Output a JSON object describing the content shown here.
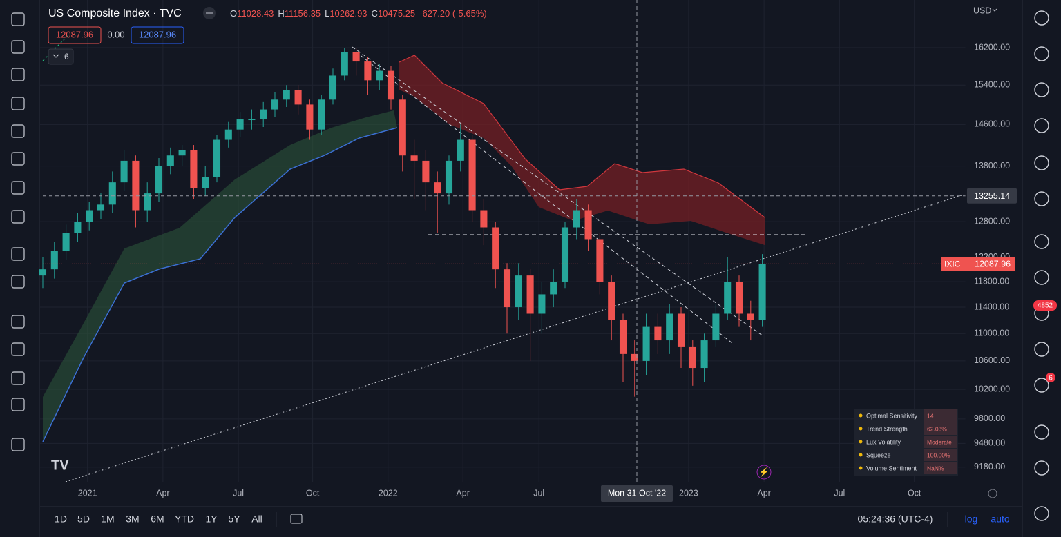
{
  "header": {
    "symbol": "US Composite Index · TVC",
    "ohlc": [
      {
        "key": "O",
        "value": "11028.43"
      },
      {
        "key": "H",
        "value": "11156.35"
      },
      {
        "key": "L",
        "value": "10262.93"
      },
      {
        "key": "C",
        "value": "10475.25"
      }
    ],
    "change": "-627.20 (-5.65%)",
    "bid": "12087.96",
    "spread": "0.00",
    "ask": "12087.96",
    "indicators_count": "6"
  },
  "currency": "USD",
  "chart_data": {
    "type": "candlestick",
    "log_scale": true,
    "up_color": "#26a69a",
    "down_color": "#ef5350",
    "x": [
      0,
      2,
      4,
      6,
      8,
      10,
      12,
      14,
      16,
      18,
      20,
      22,
      24,
      26,
      28,
      30,
      32,
      34,
      36,
      38,
      40,
      42,
      44,
      46,
      48,
      50,
      52,
      54,
      56,
      58,
      60,
      62,
      64,
      66,
      68,
      70,
      72,
      74,
      76,
      78,
      80,
      82,
      84,
      86,
      88,
      90,
      92,
      94,
      96,
      98,
      100,
      102,
      104,
      106,
      108,
      110,
      112,
      114,
      116,
      118,
      120,
      122,
      124
    ],
    "open": [
      11900,
      12000,
      12300,
      12600,
      12800,
      13000,
      13100,
      13500,
      13900,
      13000,
      13300,
      13800,
      14000,
      14100,
      13400,
      13600,
      14300,
      14500,
      14700,
      14700,
      14900,
      15100,
      15300,
      15000,
      14500,
      15100,
      15600,
      16100,
      15900,
      15500,
      15700,
      15100,
      14000,
      13900,
      13500,
      13300,
      13900,
      14300,
      13000,
      12700,
      12000,
      11400,
      11900,
      11300,
      11600,
      11800,
      12700,
      13000,
      12500,
      11800,
      11200,
      10700,
      10600,
      11100,
      10900,
      11300,
      10800,
      10500,
      10900,
      11300,
      11800,
      11300,
      11200
    ],
    "high": [
      12200,
      12450,
      12750,
      12950,
      13150,
      13300,
      13700,
      14100,
      14000,
      13500,
      13950,
      14150,
      14200,
      14200,
      13800,
      14400,
      14650,
      14850,
      14900,
      15050,
      15250,
      15400,
      15400,
      15100,
      15200,
      15750,
      16200,
      16200,
      16000,
      15850,
      15800,
      15200,
      14300,
      14100,
      13700,
      14000,
      14600,
      14400,
      13200,
      12800,
      12100,
      12100,
      12000,
      11800,
      12000,
      12800,
      13200,
      13100,
      12600,
      11900,
      11300,
      10900,
      11300,
      11300,
      11450,
      11400,
      10900,
      11000,
      11450,
      12200,
      11900,
      11500,
      12250
    ],
    "low": [
      11700,
      11850,
      12150,
      12450,
      12650,
      12850,
      12950,
      13350,
      12700,
      12800,
      13150,
      13650,
      13800,
      13200,
      13250,
      13500,
      14150,
      14350,
      14500,
      14550,
      14750,
      14950,
      14800,
      14300,
      14400,
      15000,
      15500,
      15600,
      15200,
      15300,
      14900,
      13700,
      13200,
      13000,
      12600,
      13100,
      13700,
      12800,
      12400,
      11700,
      11000,
      11200,
      10600,
      11000,
      11400,
      11700,
      12500,
      12300,
      11600,
      10900,
      10300,
      10100,
      10400,
      10700,
      10700,
      10500,
      10250,
      10300,
      10800,
      11200,
      11100,
      10900,
      11100
    ],
    "close": [
      12000,
      12300,
      12600,
      12800,
      13000,
      13100,
      13500,
      13900,
      13000,
      13300,
      13800,
      14000,
      14100,
      13400,
      13600,
      14300,
      14500,
      14700,
      14700,
      14900,
      15100,
      15300,
      15000,
      14500,
      15100,
      15600,
      16100,
      15900,
      15500,
      15700,
      15100,
      14000,
      13900,
      13500,
      13300,
      13900,
      14300,
      13000,
      12700,
      12000,
      11400,
      11900,
      11300,
      11600,
      11800,
      12700,
      13000,
      12500,
      11800,
      11200,
      10700,
      10600,
      11100,
      10900,
      11300,
      10800,
      10500,
      10900,
      11300,
      11800,
      11300,
      11200,
      12088
    ],
    "xlim": [
      0,
      159
    ],
    "ylim": [
      9000,
      17280
    ],
    "xticks": [
      {
        "value": 7.7,
        "label": "2021"
      },
      {
        "value": 20.7,
        "label": "Apr"
      },
      {
        "value": 33.7,
        "label": "Jul"
      },
      {
        "value": 46.5,
        "label": "Oct"
      },
      {
        "value": 59.5,
        "label": "2022"
      },
      {
        "value": 72.4,
        "label": "Apr"
      },
      {
        "value": 85.5,
        "label": "Jul"
      },
      {
        "value": 111.3,
        "label": "2023"
      },
      {
        "value": 124.3,
        "label": "Apr"
      },
      {
        "value": 137.3,
        "label": "Jul"
      },
      {
        "value": 150.2,
        "label": "Oct"
      }
    ],
    "yticks": [
      {
        "value": 16200,
        "label": "16200.00"
      },
      {
        "value": 15400,
        "label": "15400.00"
      },
      {
        "value": 14600,
        "label": "14600.00"
      },
      {
        "value": 13800,
        "label": "13800.00"
      },
      {
        "value": 12800,
        "label": "12800.00"
      },
      {
        "value": 12200,
        "label": "12200.00"
      },
      {
        "value": 11800,
        "label": "11800.00"
      },
      {
        "value": 11400,
        "label": "11400.00"
      },
      {
        "value": 11000,
        "label": "11000.00"
      },
      {
        "value": 10600,
        "label": "10600.00"
      },
      {
        "value": 10200,
        "label": "10200.00"
      },
      {
        "value": 9800,
        "label": "9800.00"
      },
      {
        "value": 9480,
        "label": "9480.00"
      },
      {
        "value": 9180,
        "label": "9180.00"
      }
    ],
    "price_line": {
      "symbol": "IXIC",
      "value": 12087.96
    },
    "crosshair": {
      "value": 13255.14,
      "date_label": "Mon 31 Oct '22"
    }
  },
  "timeframes": [
    "1D",
    "5D",
    "1M",
    "3M",
    "6M",
    "YTD",
    "1Y",
    "5Y",
    "All"
  ],
  "clock": "05:24:36 (UTC-4)",
  "scale_buttons": [
    "log",
    "auto"
  ],
  "info_table": {
    "rows": [
      [
        "Optimal Sensitivity",
        "14"
      ],
      [
        "Trend Strength",
        "62.03%"
      ],
      [
        "Lux Volatility",
        "Moderate"
      ],
      [
        "Squeeze",
        "100.00%"
      ],
      [
        "Volume Sentiment",
        "NaN%"
      ]
    ]
  },
  "badges": {
    "ideas": "4852",
    "alerts": "6"
  }
}
